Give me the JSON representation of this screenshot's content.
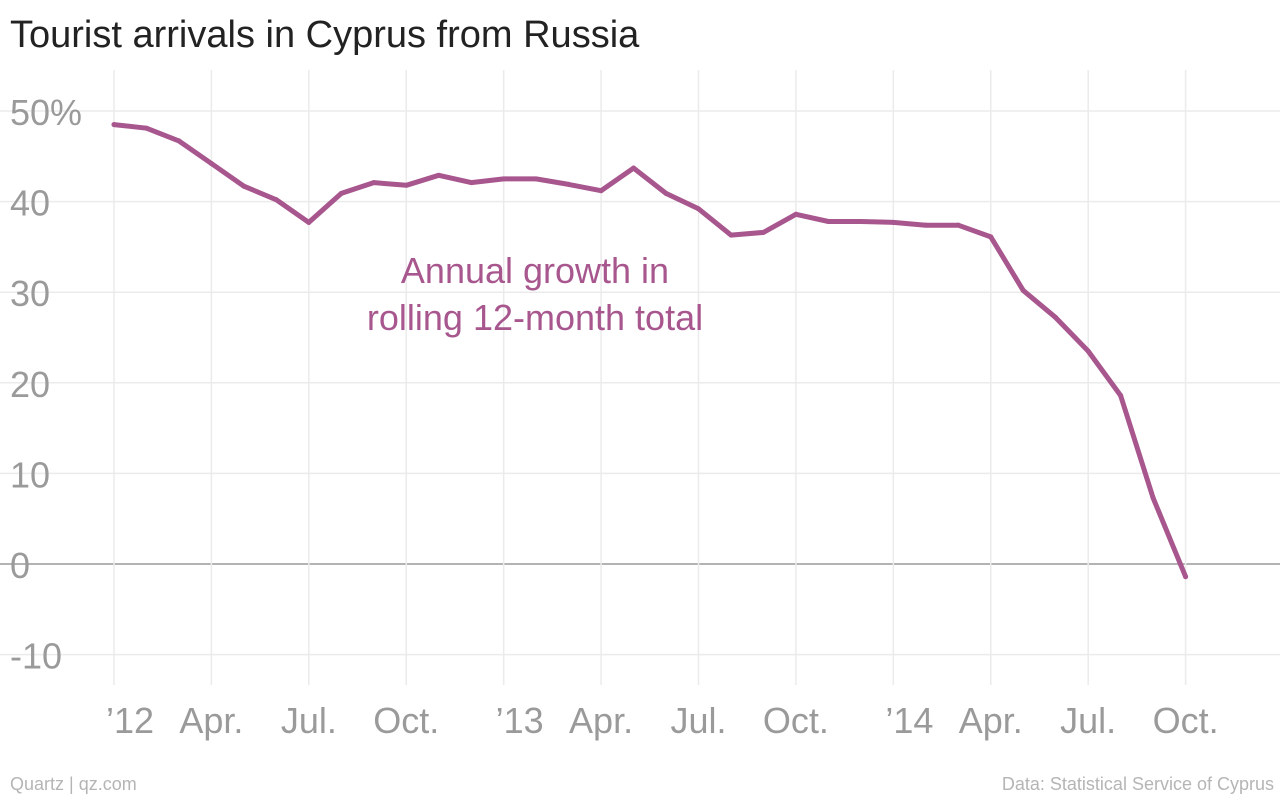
{
  "title": "Tourist arrivals in Cyprus from Russia",
  "footer": {
    "source_left": "Quartz | qz.com",
    "source_right": "Data: Statistical Service of Cyprus"
  },
  "colors": {
    "line": "#a8578e",
    "grid": "#ebebeb",
    "zero_line": "#9a9a9a",
    "tick_text": "#9a9a9a",
    "title": "#222222"
  },
  "chart_data": {
    "type": "line",
    "title": "Tourist arrivals in Cyprus from Russia",
    "xlabel": "",
    "ylabel": "",
    "y_unit": "%",
    "ylim": [
      -14,
      54
    ],
    "yticks": [
      50,
      40,
      30,
      20,
      10,
      0,
      -10
    ],
    "ytick_labels": [
      "50%",
      "40",
      "30",
      "20",
      "10",
      "0",
      "-10"
    ],
    "x_range": [
      "2012-01",
      "2015-01"
    ],
    "xticks": [
      {
        "x": "2012-01",
        "label": "’12"
      },
      {
        "x": "2012-04",
        "label": "Apr."
      },
      {
        "x": "2012-07",
        "label": "Jul."
      },
      {
        "x": "2012-10",
        "label": "Oct."
      },
      {
        "x": "2013-01",
        "label": "’13"
      },
      {
        "x": "2013-04",
        "label": "Apr."
      },
      {
        "x": "2013-07",
        "label": "Jul."
      },
      {
        "x": "2013-10",
        "label": "Oct."
      },
      {
        "x": "2014-01",
        "label": "’14"
      },
      {
        "x": "2014-04",
        "label": "Apr."
      },
      {
        "x": "2014-07",
        "label": "Jul."
      },
      {
        "x": "2014-10",
        "label": "Oct."
      }
    ],
    "grid": true,
    "annotation": {
      "lines": [
        "Annual growth in",
        "rolling 12-month total"
      ]
    },
    "series": [
      {
        "x": [
          "2012-01",
          "2012-02",
          "2012-03",
          "2012-04",
          "2012-05",
          "2012-06",
          "2012-07",
          "2012-08",
          "2012-09",
          "2012-10",
          "2012-11",
          "2012-12",
          "2013-01",
          "2013-02",
          "2013-03",
          "2013-04",
          "2013-05",
          "2013-06",
          "2013-07",
          "2013-08",
          "2013-09",
          "2013-10",
          "2013-11",
          "2013-12",
          "2014-01",
          "2014-02",
          "2014-03",
          "2014-04",
          "2014-05",
          "2014-06",
          "2014-07",
          "2014-08",
          "2014-09",
          "2014-10"
        ],
        "values": [
          48.5,
          48.1,
          46.7,
          44.2,
          41.7,
          40.2,
          37.7,
          40.9,
          42.1,
          41.8,
          42.9,
          42.1,
          42.5,
          42.5,
          41.9,
          41.2,
          43.7,
          40.9,
          39.2,
          36.3,
          36.6,
          38.6,
          37.8,
          37.8,
          37.7,
          37.4,
          37.4,
          36.1,
          30.2,
          27.2,
          23.5,
          18.6,
          7.3,
          -1.4
        ]
      }
    ]
  }
}
